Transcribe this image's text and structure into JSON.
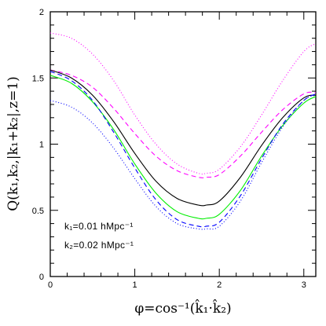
{
  "chart_data": {
    "type": "line",
    "xlabel": "φ=cos⁻¹(k̂₁·k̂₂)",
    "ylabel": "Q(k₁,k₂,|k₁+k₂|,z=1)",
    "xlim": [
      0,
      3.14159
    ],
    "ylim": [
      0,
      2
    ],
    "xticks": [
      0,
      1,
      2,
      3
    ],
    "xtick_labels": [
      "0",
      "1",
      "2",
      "3"
    ],
    "yticks": [
      0,
      0.5,
      1,
      1.5,
      2
    ],
    "ytick_labels": [
      "0",
      "0.5",
      "1",
      "1.5",
      "2"
    ],
    "grid": false,
    "annotations": [
      "k₁=0.01 hMpc⁻¹",
      "k₂=0.02 hMpc⁻¹"
    ],
    "x": [
      0,
      0.25,
      0.5,
      0.75,
      1.0,
      1.25,
      1.5,
      1.75,
      1.85,
      2.0,
      2.25,
      2.5,
      2.75,
      3.0,
      3.14159
    ],
    "series": [
      {
        "color": "#ff00ff",
        "style": "dotted",
        "values": [
          1.84,
          1.8,
          1.68,
          1.48,
          1.22,
          1.0,
          0.85,
          0.78,
          0.78,
          0.81,
          0.98,
          1.22,
          1.48,
          1.7,
          1.76
        ]
      },
      {
        "color": "#ff00ff",
        "style": "dashed",
        "values": [
          1.56,
          1.52,
          1.43,
          1.27,
          1.08,
          0.91,
          0.8,
          0.75,
          0.75,
          0.77,
          0.91,
          1.09,
          1.26,
          1.38,
          1.39
        ]
      },
      {
        "color": "#000000",
        "style": "solid",
        "values": [
          1.56,
          1.5,
          1.37,
          1.17,
          0.93,
          0.72,
          0.59,
          0.54,
          0.54,
          0.57,
          0.75,
          0.99,
          1.2,
          1.35,
          1.37
        ]
      },
      {
        "color": "#00ee00",
        "style": "solid",
        "values": [
          1.52,
          1.46,
          1.32,
          1.11,
          0.85,
          0.63,
          0.49,
          0.44,
          0.44,
          0.47,
          0.65,
          0.91,
          1.14,
          1.31,
          1.36
        ]
      },
      {
        "color": "#0000ff",
        "style": "dashed",
        "values": [
          1.55,
          1.48,
          1.33,
          1.09,
          0.82,
          0.58,
          0.43,
          0.38,
          0.38,
          0.41,
          0.61,
          0.89,
          1.15,
          1.33,
          1.38
        ]
      },
      {
        "color": "#0000ff",
        "style": "dotted",
        "values": [
          1.33,
          1.28,
          1.16,
          0.97,
          0.74,
          0.53,
          0.4,
          0.36,
          0.36,
          0.38,
          0.57,
          0.86,
          1.13,
          1.33,
          1.37
        ]
      }
    ]
  }
}
